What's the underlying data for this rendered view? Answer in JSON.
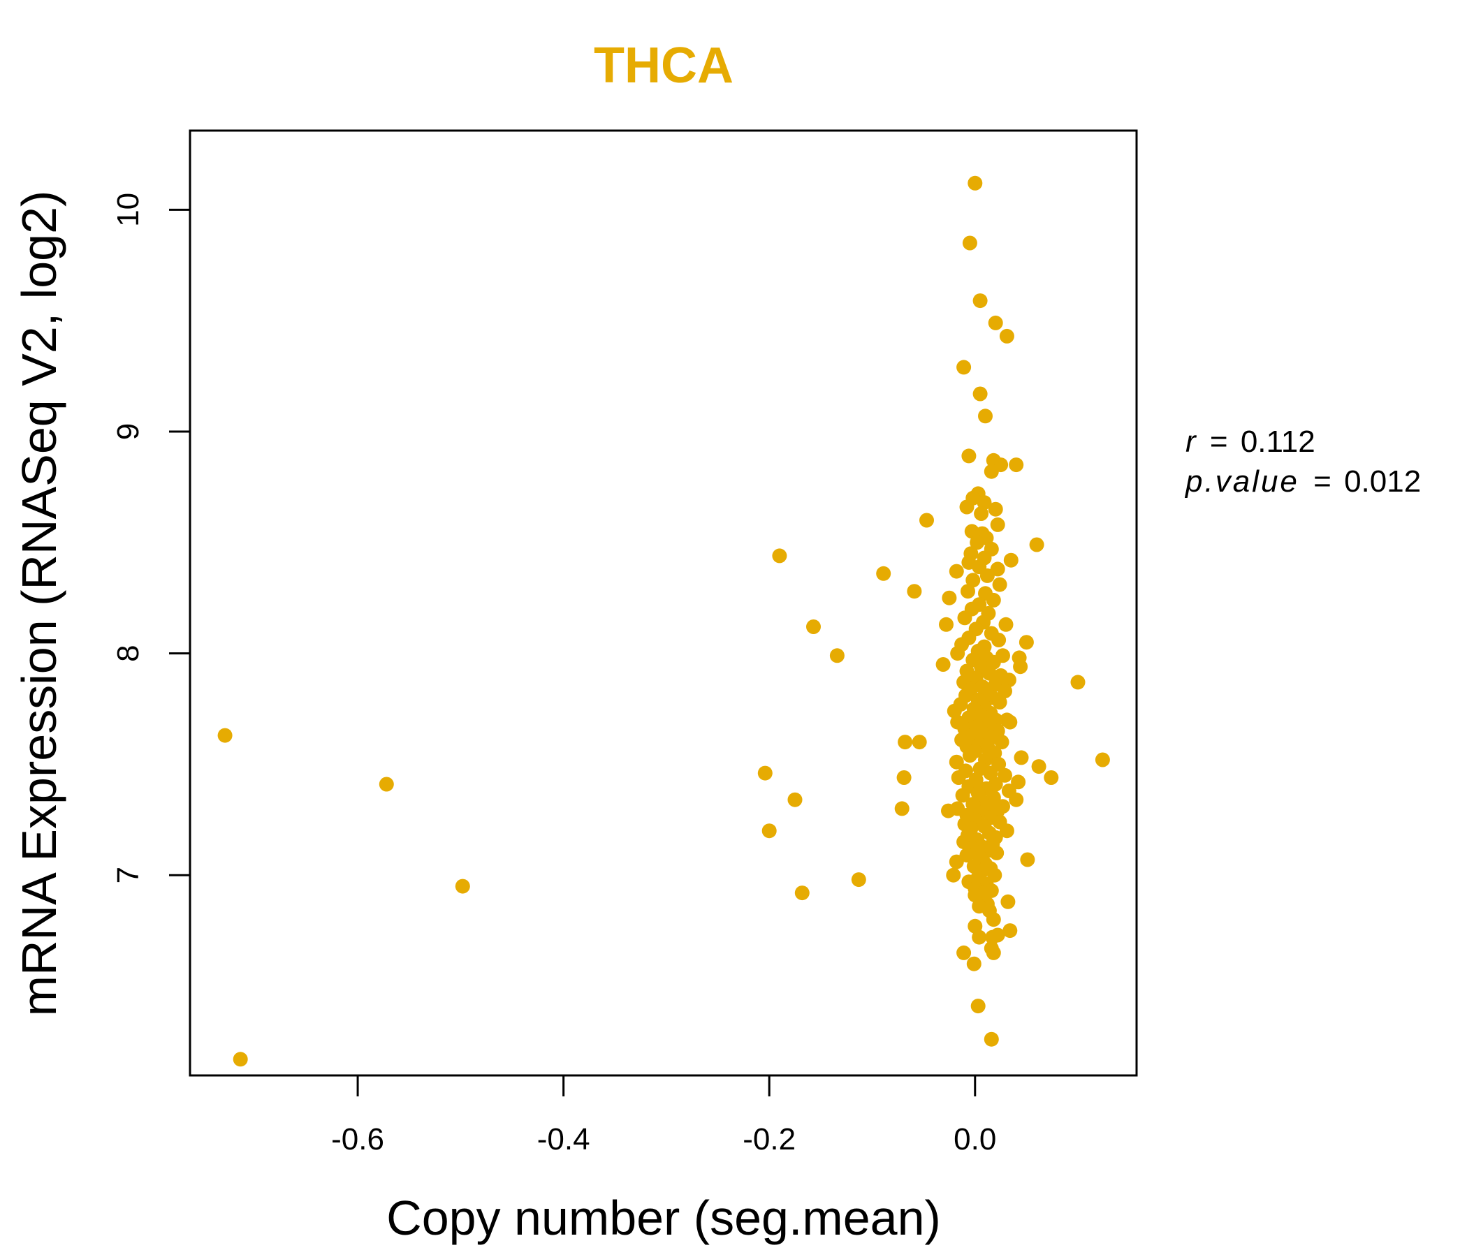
{
  "chart_data": {
    "type": "scatter",
    "title": "THCA",
    "xlabel": "Copy number (seg.mean)",
    "ylabel": "mRNA Expression (RNASeq V2, log2)",
    "xlim": [
      -0.763,
      0.157
    ],
    "ylim": [
      6.097,
      10.357
    ],
    "x_ticks": [
      -0.6,
      -0.4,
      -0.2,
      0.0
    ],
    "x_tick_labels": [
      "-0.6",
      "-0.4",
      "-0.2",
      "0.0"
    ],
    "y_ticks": [
      7,
      8,
      9,
      10
    ],
    "y_tick_labels": [
      "7",
      "8",
      "9",
      "10"
    ],
    "annotation": {
      "r_symbol": "r",
      "r_eq": "=",
      "r_value": "0.112",
      "p_symbol": "p.value",
      "p_eq": "=",
      "p_value": "0.012"
    },
    "point_color": "#E6AB02",
    "title_color": "#E6AB02",
    "points": [
      [
        -0.729,
        7.63
      ],
      [
        -0.714,
        6.17
      ],
      [
        -0.572,
        7.41
      ],
      [
        -0.498,
        6.95
      ],
      [
        -0.204,
        7.46
      ],
      [
        -0.2,
        7.2
      ],
      [
        -0.19,
        8.44
      ],
      [
        -0.175,
        7.34
      ],
      [
        -0.168,
        6.92
      ],
      [
        -0.157,
        8.12
      ],
      [
        -0.134,
        7.99
      ],
      [
        -0.113,
        6.98
      ],
      [
        -0.089,
        8.36
      ],
      [
        -0.071,
        7.3
      ],
      [
        -0.069,
        7.44
      ],
      [
        -0.068,
        7.6
      ],
      [
        -0.059,
        8.28
      ],
      [
        -0.054,
        7.6
      ],
      [
        -0.047,
        8.6
      ],
      [
        0.0,
        10.12
      ],
      [
        -0.005,
        9.85
      ],
      [
        0.005,
        9.59
      ],
      [
        0.02,
        9.49
      ],
      [
        0.031,
        9.43
      ],
      [
        -0.011,
        9.29
      ],
      [
        0.005,
        9.17
      ],
      [
        0.01,
        9.07
      ],
      [
        -0.006,
        8.89
      ],
      [
        0.018,
        8.87
      ],
      [
        0.025,
        8.85
      ],
      [
        0.04,
        8.85
      ],
      [
        0.016,
        8.82
      ],
      [
        0.003,
        8.72
      ],
      [
        -0.002,
        8.7
      ],
      [
        0.009,
        8.68
      ],
      [
        -0.008,
        8.66
      ],
      [
        0.02,
        8.65
      ],
      [
        0.006,
        8.63
      ],
      [
        0.022,
        8.58
      ],
      [
        -0.003,
        8.55
      ],
      [
        0.007,
        8.54
      ],
      [
        0.011,
        8.52
      ],
      [
        0.002,
        8.5
      ],
      [
        0.06,
        8.49
      ],
      [
        0.016,
        8.47
      ],
      [
        -0.004,
        8.45
      ],
      [
        0.009,
        8.43
      ],
      [
        0.035,
        8.42
      ],
      [
        -0.006,
        8.41
      ],
      [
        0.004,
        8.39
      ],
      [
        0.022,
        8.38
      ],
      [
        -0.018,
        8.37
      ],
      [
        0.012,
        8.35
      ],
      [
        -0.002,
        8.33
      ],
      [
        0.024,
        8.31
      ],
      [
        -0.007,
        8.28
      ],
      [
        0.01,
        8.27
      ],
      [
        -0.025,
        8.25
      ],
      [
        0.018,
        8.24
      ],
      [
        0.004,
        8.22
      ],
      [
        -0.003,
        8.2
      ],
      [
        0.013,
        8.18
      ],
      [
        -0.01,
        8.16
      ],
      [
        0.008,
        8.14
      ],
      [
        0.03,
        8.13
      ],
      [
        -0.028,
        8.13
      ],
      [
        0.001,
        8.11
      ],
      [
        0.016,
        8.09
      ],
      [
        -0.006,
        8.07
      ],
      [
        0.023,
        8.06
      ],
      [
        0.05,
        8.05
      ],
      [
        -0.013,
        8.04
      ],
      [
        0.009,
        8.03
      ],
      [
        0.003,
        8.01
      ],
      [
        -0.017,
        8.0
      ],
      [
        0.027,
        7.99
      ],
      [
        0.011,
        7.98
      ],
      [
        0.043,
        7.98
      ],
      [
        -0.002,
        7.97
      ],
      [
        0.018,
        7.96
      ],
      [
        -0.031,
        7.95
      ],
      [
        0.006,
        7.94
      ],
      [
        0.044,
        7.94
      ],
      [
        -0.008,
        7.92
      ],
      [
        0.014,
        7.91
      ],
      [
        0.025,
        7.9
      ],
      [
        0.001,
        7.89
      ],
      [
        0.033,
        7.88
      ],
      [
        -0.011,
        7.87
      ],
      [
        0.02,
        7.86
      ],
      [
        0.1,
        7.87
      ],
      [
        0.007,
        7.85
      ],
      [
        -0.004,
        7.84
      ],
      [
        0.029,
        7.83
      ],
      [
        0.012,
        7.82
      ],
      [
        -0.009,
        7.81
      ],
      [
        0.017,
        7.8
      ],
      [
        0.003,
        7.79
      ],
      [
        0.024,
        7.78
      ],
      [
        -0.014,
        7.77
      ],
      [
        0.009,
        7.76
      ],
      [
        -0.001,
        7.75
      ],
      [
        -0.02,
        7.74
      ],
      [
        0.015,
        7.73
      ],
      [
        0.006,
        7.72
      ],
      [
        -0.006,
        7.71
      ],
      [
        0.031,
        7.7
      ],
      [
        0.02,
        7.7
      ],
      [
        -0.017,
        7.69
      ],
      [
        0.011,
        7.68
      ],
      [
        0.034,
        7.69
      ],
      [
        0.002,
        7.67
      ],
      [
        -0.01,
        7.66
      ],
      [
        0.022,
        7.65
      ],
      [
        0.008,
        7.64
      ],
      [
        -0.003,
        7.63
      ],
      [
        0.016,
        7.62
      ],
      [
        -0.013,
        7.61
      ],
      [
        0.026,
        7.6
      ],
      [
        0.004,
        7.59
      ],
      [
        -0.008,
        7.58
      ],
      [
        0.013,
        7.57
      ],
      [
        0.0,
        7.56
      ],
      [
        0.019,
        7.55
      ],
      [
        -0.005,
        7.54
      ],
      [
        0.045,
        7.53
      ],
      [
        0.01,
        7.52
      ],
      [
        0.124,
        7.52
      ],
      [
        -0.018,
        7.51
      ],
      [
        0.023,
        7.5
      ],
      [
        0.062,
        7.49
      ],
      [
        0.005,
        7.48
      ],
      [
        -0.009,
        7.47
      ],
      [
        0.015,
        7.46
      ],
      [
        0.029,
        7.45
      ],
      [
        0.074,
        7.44
      ],
      [
        -0.016,
        7.44
      ],
      [
        0.001,
        7.43
      ],
      [
        0.042,
        7.42
      ],
      [
        0.02,
        7.41
      ],
      [
        -0.006,
        7.4
      ],
      [
        0.011,
        7.39
      ],
      [
        0.033,
        7.38
      ],
      [
        0.003,
        7.37
      ],
      [
        -0.012,
        7.36
      ],
      [
        0.018,
        7.35
      ],
      [
        0.04,
        7.34
      ],
      [
        0.007,
        7.33
      ],
      [
        -0.002,
        7.32
      ],
      [
        0.027,
        7.31
      ],
      [
        -0.017,
        7.3
      ],
      [
        0.013,
        7.3
      ],
      [
        -0.026,
        7.29
      ],
      [
        0.022,
        7.29
      ],
      [
        0.005,
        7.28
      ],
      [
        -0.008,
        7.27
      ],
      [
        0.016,
        7.26
      ],
      [
        0.0,
        7.25
      ],
      [
        0.024,
        7.24
      ],
      [
        -0.01,
        7.23
      ],
      [
        0.009,
        7.22
      ],
      [
        -0.004,
        7.21
      ],
      [
        0.031,
        7.2
      ],
      [
        0.014,
        7.19
      ],
      [
        -0.007,
        7.18
      ],
      [
        0.02,
        7.17
      ],
      [
        0.002,
        7.16
      ],
      [
        -0.011,
        7.15
      ],
      [
        0.017,
        7.14
      ],
      [
        0.006,
        7.13
      ],
      [
        -0.003,
        7.12
      ],
      [
        0.012,
        7.11
      ],
      [
        0.021,
        7.1
      ],
      [
        -0.008,
        7.09
      ],
      [
        0.005,
        7.08
      ],
      [
        0.051,
        7.07
      ],
      [
        -0.018,
        7.06
      ],
      [
        0.01,
        7.05
      ],
      [
        -0.001,
        7.04
      ],
      [
        0.015,
        7.03
      ],
      [
        0.007,
        7.02
      ],
      [
        -0.021,
        7.0
      ],
      [
        0.019,
        7.0
      ],
      [
        0.003,
        6.99
      ],
      [
        -0.006,
        6.97
      ],
      [
        0.011,
        6.96
      ],
      [
        0.0,
        6.94
      ],
      [
        0.016,
        6.93
      ],
      [
        0.008,
        6.92
      ],
      [
        0.0,
        6.91
      ],
      [
        0.032,
        6.88
      ],
      [
        0.012,
        6.87
      ],
      [
        0.004,
        6.86
      ],
      [
        0.014,
        6.84
      ],
      [
        0.018,
        6.8
      ],
      [
        0.0,
        6.77
      ],
      [
        0.034,
        6.75
      ],
      [
        0.022,
        6.73
      ],
      [
        0.017,
        6.72
      ],
      [
        0.004,
        6.72
      ],
      [
        0.016,
        6.67
      ],
      [
        0.018,
        6.65
      ],
      [
        -0.011,
        6.65
      ],
      [
        -0.001,
        6.6
      ],
      [
        0.003,
        6.41
      ],
      [
        0.016,
        6.26
      ]
    ]
  }
}
